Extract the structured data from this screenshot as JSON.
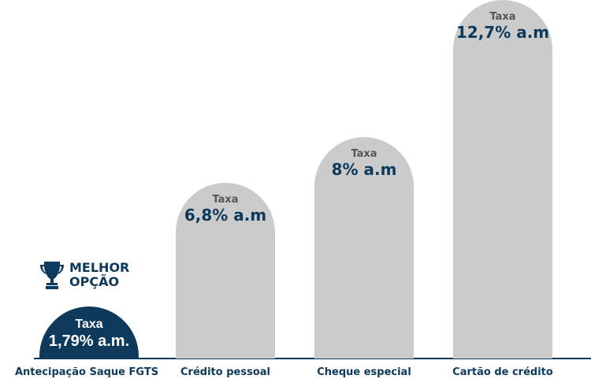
{
  "chart_data": {
    "type": "bar",
    "categories": [
      "Antecipação Saque FGTS",
      "Crédito pessoal",
      "Cheque especial",
      "Cartão de crédito"
    ],
    "values": [
      1.79,
      6.8,
      8,
      12.7
    ],
    "unit": "% a.m.",
    "bar_labels": [
      {
        "prefix": "Taxa",
        "text": "1,79% a.m."
      },
      {
        "prefix": "Taxa",
        "text": "6,8% a.m"
      },
      {
        "prefix": "Taxa",
        "text": "8% a.m"
      },
      {
        "prefix": "Taxa",
        "text": "12,7% a.m"
      }
    ],
    "colors": {
      "highlight": "#0d3a5c",
      "default": "#cbcbcb"
    },
    "highlight_index": 0,
    "grid": false
  },
  "badge": {
    "line1": "MELHOR",
    "line2": "OPÇÃO",
    "icon": "trophy-icon"
  }
}
